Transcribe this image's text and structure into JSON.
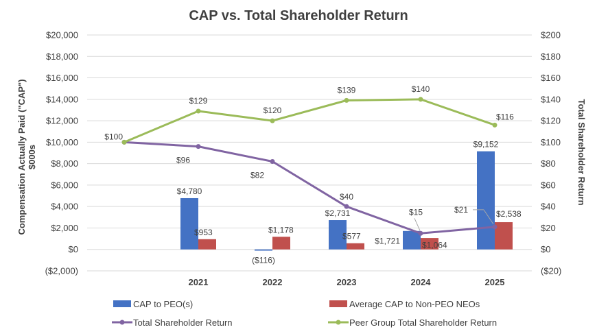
{
  "chart_data": {
    "type": "bar",
    "title": "CAP vs. Total Shareholder Return",
    "categories": [
      "",
      "2021",
      "2022",
      "2023",
      "2024",
      "2025"
    ],
    "y_left": {
      "label_line1": "Compensation Actually Paid (\"CAP\")",
      "label_line2": "$000s",
      "range": [
        -2000,
        20000
      ],
      "ticks": [
        -2000,
        0,
        2000,
        4000,
        6000,
        8000,
        10000,
        12000,
        14000,
        16000,
        18000,
        20000
      ],
      "tick_labels": [
        "($2,000)",
        "$0",
        "$2,000",
        "$4,000",
        "$6,000",
        "$8,000",
        "$10,000",
        "$12,000",
        "$14,000",
        "$16,000",
        "$18,000",
        "$20,000"
      ]
    },
    "y_right": {
      "label": "Total Shareholder Return",
      "range": [
        -20,
        200
      ],
      "ticks": [
        -20,
        0,
        20,
        40,
        60,
        80,
        100,
        120,
        140,
        160,
        180,
        200
      ],
      "tick_labels": [
        "($20)",
        "$0",
        "$20",
        "$40",
        "$60",
        "$80",
        "$100",
        "$120",
        "$140",
        "$160",
        "$180",
        "$200"
      ]
    },
    "bar_series": [
      {
        "name": "CAP to PEO(s)",
        "color": "#4472C4",
        "values": [
          null,
          4780,
          -116,
          2731,
          1721,
          9152
        ],
        "labels": [
          null,
          "$4,780",
          "($116)",
          "$2,731",
          "$1,721",
          "$9,152"
        ]
      },
      {
        "name": "Average CAP to Non-PEO NEOs",
        "color": "#C0504D",
        "values": [
          null,
          953,
          1178,
          577,
          1064,
          2538
        ],
        "labels": [
          null,
          "$953",
          "$1,178",
          "$577",
          "$1,064",
          "$2,538"
        ]
      }
    ],
    "line_series": [
      {
        "name": "Total Shareholder Return",
        "color": "#8064A2",
        "values": [
          100,
          96,
          82,
          40,
          15,
          21
        ],
        "labels": [
          null,
          "$96",
          "$82",
          "$40",
          "$15",
          "$21"
        ]
      },
      {
        "name": "Peer Group Total Shareholder Return",
        "color": "#9BBB59",
        "values": [
          100,
          129,
          120,
          139,
          140,
          116
        ],
        "labels": [
          "$100",
          "$129",
          "$120",
          "$139",
          "$140",
          "$116"
        ]
      }
    ],
    "legend": [
      {
        "name": "CAP to PEO(s)",
        "kind": "bar",
        "color": "#4472C4"
      },
      {
        "name": "Average CAP to Non-PEO NEOs",
        "kind": "bar",
        "color": "#C0504D"
      },
      {
        "name": "Total Shareholder Return",
        "kind": "line",
        "color": "#8064A2"
      },
      {
        "name": "Peer Group Total Shareholder Return",
        "kind": "line",
        "color": "#9BBB59"
      }
    ],
    "legend_position": "bottom",
    "grid": true
  }
}
